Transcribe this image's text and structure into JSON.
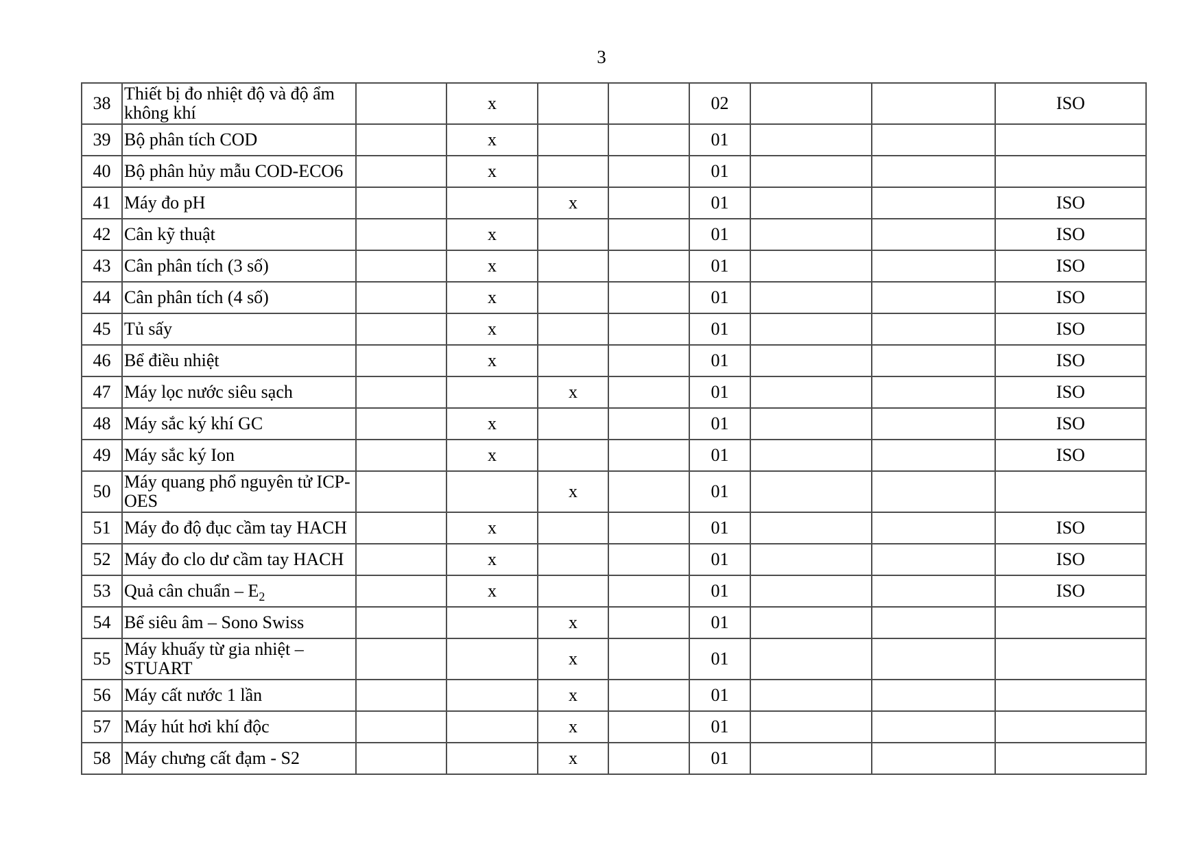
{
  "page": {
    "number": "3"
  },
  "table": {
    "check_mark": "x",
    "iso_label": "ISO",
    "rows": [
      {
        "no": "38",
        "name": "Thiết bị đo nhiệt độ và độ ẩm không khí",
        "check": "a",
        "qty": "02",
        "iso": "ISO"
      },
      {
        "no": "39",
        "name": "Bộ phân tích COD",
        "check": "a",
        "qty": "01",
        "iso": ""
      },
      {
        "no": "40",
        "name": "Bộ phân hủy mẫu COD-ECO6",
        "check": "a",
        "qty": "01",
        "iso": ""
      },
      {
        "no": "41",
        "name": "Máy đo pH",
        "check": "b",
        "qty": "01",
        "iso": "ISO"
      },
      {
        "no": "42",
        "name": "Cân kỹ thuật",
        "check": "a",
        "qty": "01",
        "iso": "ISO"
      },
      {
        "no": "43",
        "name": "Cân phân tích (3 số)",
        "check": "a",
        "qty": "01",
        "iso": "ISO"
      },
      {
        "no": "44",
        "name": "Cân phân tích (4 số)",
        "check": "a",
        "qty": "01",
        "iso": "ISO"
      },
      {
        "no": "45",
        "name": "Tủ sấy",
        "check": "a",
        "qty": "01",
        "iso": "ISO"
      },
      {
        "no": "46",
        "name": "Bể điều nhiệt",
        "check": "a",
        "qty": "01",
        "iso": "ISO"
      },
      {
        "no": "47",
        "name": "Máy lọc nước siêu sạch",
        "check": "b",
        "qty": "01",
        "iso": "ISO"
      },
      {
        "no": "48",
        "name": "Máy sắc ký khí GC",
        "check": "a",
        "qty": "01",
        "iso": "ISO"
      },
      {
        "no": "49",
        "name": "Máy sắc ký Ion",
        "check": "a",
        "qty": "01",
        "iso": "ISO"
      },
      {
        "no": "50",
        "name": "Máy quang phổ nguyên tử ICP-OES",
        "check": "b",
        "qty": "01",
        "iso": ""
      },
      {
        "no": "51",
        "name": "Máy đo độ đục cầm tay HACH",
        "check": "a",
        "qty": "01",
        "iso": "ISO"
      },
      {
        "no": "52",
        "name": "Máy đo clo dư cầm tay HACH",
        "check": "a",
        "qty": "01",
        "iso": "ISO"
      },
      {
        "no": "53",
        "name": "Quả cân chuẩn – E",
        "name_sub": "2",
        "check": "a",
        "qty": "01",
        "iso": "ISO"
      },
      {
        "no": "54",
        "name": "Bể siêu âm – Sono Swiss",
        "check": "b",
        "qty": "01",
        "iso": ""
      },
      {
        "no": "55",
        "name": "Máy khuấy từ gia nhiệt – STUART",
        "check": "b",
        "qty": "01",
        "iso": ""
      },
      {
        "no": "56",
        "name": "Máy cất nước 1 lần",
        "check": "b",
        "qty": "01",
        "iso": ""
      },
      {
        "no": "57",
        "name": "Máy hút hơi khí độc",
        "check": "b",
        "qty": "01",
        "iso": ""
      },
      {
        "no": "58",
        "name": "Máy chưng cất đạm - S2",
        "check": "b",
        "qty": "01",
        "iso": ""
      }
    ]
  }
}
